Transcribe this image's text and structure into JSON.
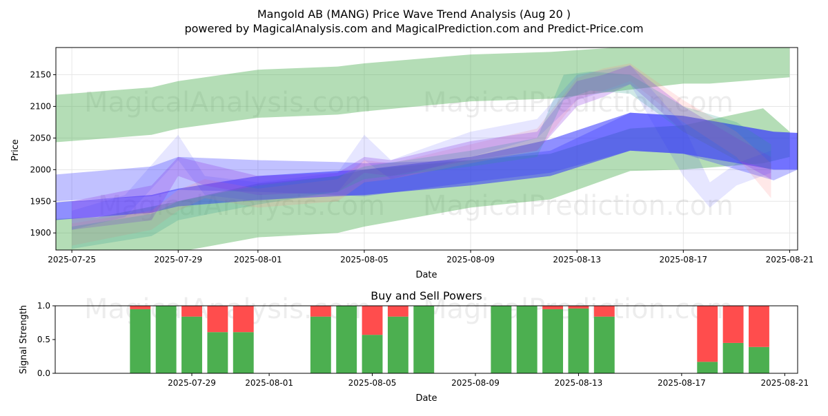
{
  "header": {
    "title": "Mangold AB (MANG) Price Wave Trend Analysis (Aug 20 )",
    "subtitle": "powered by MagicalAnalysis.com and MagicalPrediction.com and Predict-Price.com"
  },
  "watermarks": [
    "MagicalAnalysis.com",
    "MagicalPrediction.com"
  ],
  "colors": {
    "green": "#4caf50",
    "red": "#ff4d4d",
    "blue": "#3333ff",
    "bull_band": "#2e9b2e",
    "red_band": "#ff8080",
    "teal": "#2a9d8f",
    "purple": "#8a2be2",
    "axis": "#000000",
    "grid": "#e6e6e6"
  },
  "chart_data": [
    {
      "type": "area",
      "title": "",
      "xlabel": "Date",
      "ylabel": "Price",
      "x_start": "2025-07-24",
      "xlim": [
        0.4,
        28.3
      ],
      "ylim": [
        1873,
        2193
      ],
      "xticks": [
        {
          "day": 1,
          "label": "2025-07-25"
        },
        {
          "day": 5,
          "label": "2025-07-29"
        },
        {
          "day": 8,
          "label": "2025-08-01"
        },
        {
          "day": 12,
          "label": "2025-08-05"
        },
        {
          "day": 16,
          "label": "2025-08-09"
        },
        {
          "day": 20,
          "label": "2025-08-13"
        },
        {
          "day": 24,
          "label": "2025-08-17"
        },
        {
          "day": 28,
          "label": "2025-08-21"
        }
      ],
      "yticks": [
        1900,
        1950,
        2000,
        2050,
        2100,
        2150
      ],
      "bands": [
        {
          "name": "upper green band",
          "color": "green",
          "opacity": 0.42,
          "x": [
            0.3,
            4,
            5,
            8,
            11,
            12,
            16,
            19,
            24,
            25,
            28
          ],
          "upper": [
            2118,
            2130,
            2140,
            2158,
            2163,
            2168,
            2182,
            2186,
            2200,
            2200,
            2196
          ],
          "lower": [
            2043,
            2055,
            2065,
            2082,
            2087,
            2092,
            2108,
            2112,
            2136,
            2136,
            2146
          ]
        },
        {
          "name": "lower green band",
          "color": "green",
          "opacity": 0.42,
          "x": [
            0.3,
            2,
            5,
            8,
            11,
            12,
            16,
            19,
            22,
            24,
            27,
            28
          ],
          "upper": [
            1922,
            1925,
            1950,
            1978,
            1990,
            2000,
            2015,
            2025,
            2065,
            2070,
            2097,
            2060
          ],
          "lower": [
            1870,
            1868,
            1870,
            1893,
            1900,
            1910,
            1940,
            1953,
            1998,
            2000,
            2010,
            2020
          ]
        },
        {
          "name": "blue trend band",
          "color": "blue",
          "opacity": 0.55,
          "x": [
            0.3,
            4,
            5,
            8,
            11,
            12,
            16,
            19,
            22,
            24,
            27.4,
            28.3
          ],
          "upper": [
            1948,
            1960,
            1970,
            1990,
            1998,
            2000,
            2020,
            2048,
            2090,
            2085,
            2060,
            2058
          ],
          "lower": [
            1920,
            1932,
            1942,
            1952,
            1958,
            1960,
            1975,
            1990,
            2030,
            2025,
            2000,
            2000
          ]
        },
        {
          "name": "blue upper envelope",
          "color": "blue",
          "opacity": 0.3,
          "x": [
            0.3,
            4,
            5,
            8,
            11,
            12,
            16,
            19,
            22,
            24,
            27.4,
            28.3
          ],
          "upper": [
            1992,
            2005,
            2020,
            2015,
            2012,
            2010,
            2015,
            2030,
            2090,
            2085,
            2060,
            2058
          ],
          "lower": [
            1950,
            1958,
            1968,
            1965,
            1960,
            1958,
            1980,
            1995,
            2030,
            2025,
            1983,
            2000
          ]
        },
        {
          "name": "red wave",
          "color": "red_band",
          "opacity": 0.18,
          "x": [
            1,
            4,
            5,
            6,
            8,
            11,
            12,
            13,
            16,
            18.5,
            20,
            21,
            22,
            24,
            26,
            27.3
          ],
          "upper": [
            1915,
            1935,
            1968,
            1985,
            1970,
            1985,
            2015,
            2010,
            2040,
            2065,
            2145,
            2160,
            2168,
            2110,
            2060,
            2010
          ],
          "lower": [
            1880,
            1905,
            1935,
            1955,
            1940,
            1950,
            1980,
            1985,
            2010,
            2030,
            2110,
            2125,
            2140,
            2075,
            2020,
            1955
          ]
        },
        {
          "name": "purple wave",
          "color": "purple",
          "opacity": 0.25,
          "x": [
            1,
            4,
            5,
            6,
            8,
            11,
            12,
            13,
            16,
            18.5,
            20,
            21,
            22,
            24,
            26,
            27.3
          ],
          "upper": [
            1950,
            1975,
            2020,
            2010,
            1990,
            1995,
            2020,
            2015,
            2045,
            2060,
            2140,
            2150,
            2165,
            2100,
            2050,
            2020
          ],
          "lower": [
            1905,
            1920,
            1990,
            1975,
            1960,
            1965,
            1995,
            1990,
            2015,
            2030,
            2100,
            2115,
            2135,
            2060,
            2015,
            1985
          ]
        },
        {
          "name": "teal wave",
          "color": "teal",
          "opacity": 0.22,
          "x": [
            1,
            4,
            5,
            8,
            11,
            12,
            16,
            18.5,
            19.5,
            20.5,
            22,
            24,
            26,
            27.3
          ],
          "upper": [
            1910,
            1930,
            1950,
            1975,
            1990,
            2005,
            2030,
            2050,
            2150,
            2155,
            2150,
            2100,
            2075,
            2040
          ],
          "lower": [
            1875,
            1895,
            1920,
            1945,
            1965,
            1985,
            2005,
            2020,
            2110,
            2125,
            2120,
            2060,
            2015,
            2000
          ]
        },
        {
          "name": "light blue wave",
          "color": "blue",
          "opacity": 0.12,
          "x": [
            1,
            3,
            5,
            6,
            8,
            11,
            12,
            13,
            16,
            18.5,
            20,
            22,
            24,
            25,
            26,
            27.3
          ],
          "upper": [
            1935,
            1960,
            2055,
            1990,
            1980,
            1995,
            2055,
            2015,
            2060,
            2080,
            2150,
            2165,
            2070,
            1980,
            2010,
            2030
          ],
          "lower": [
            1905,
            1925,
            2015,
            1960,
            1950,
            1965,
            2015,
            1985,
            2020,
            2050,
            2110,
            2135,
            1990,
            1940,
            1975,
            1995
          ]
        }
      ]
    },
    {
      "type": "bar",
      "title": "Buy and Sell Powers",
      "xlabel": "Date",
      "ylabel": "Signal Strength",
      "ylim": [
        0,
        1
      ],
      "yticks": [
        "0.0",
        "0.5",
        "1.0"
      ],
      "xlim": [
        -0.3,
        28.5
      ],
      "xticks": [
        {
          "day": 5,
          "label": "2025-07-29"
        },
        {
          "day": 8,
          "label": "2025-08-01"
        },
        {
          "day": 12,
          "label": "2025-08-05"
        },
        {
          "day": 16,
          "label": "2025-08-09"
        },
        {
          "day": 20,
          "label": "2025-08-13"
        },
        {
          "day": 24,
          "label": "2025-08-17"
        },
        {
          "day": 28,
          "label": "2025-08-21"
        }
      ],
      "series": [
        {
          "name": "Buy",
          "color": "green"
        },
        {
          "name": "Sell",
          "color": "red"
        }
      ],
      "days": [
        3,
        4,
        5,
        6,
        7,
        10,
        11,
        12,
        13,
        14,
        17,
        18,
        19,
        20,
        21,
        25,
        26,
        27
      ],
      "buy": [
        0.95,
        1.0,
        0.84,
        0.61,
        0.61,
        0.84,
        1.0,
        0.57,
        0.84,
        1.0,
        1.0,
        1.0,
        0.95,
        0.96,
        0.84,
        0.17,
        0.45,
        0.39
      ]
    }
  ]
}
